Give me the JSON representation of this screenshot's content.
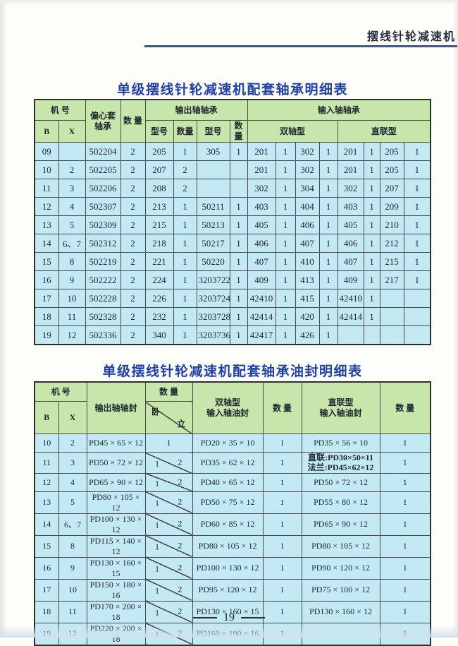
{
  "page": {
    "running_title": "摆线针轮减速机"
  },
  "table1": {
    "title": "单级摆线针轮减速机配套轴承明细表",
    "headers": {
      "machine_no": "机  号",
      "b": "B",
      "x": "X",
      "eccentric_bearing": "偏心套\n轴承",
      "qty": "数  量",
      "output_bearing": "输出轴轴承",
      "input_bearing": "输入轴轴承",
      "model": "型号",
      "qty_small": "数量",
      "dual_shaft": "双轴型",
      "direct_coupled": "直联型"
    },
    "rows": [
      [
        "09",
        "",
        "502204",
        "2",
        "205",
        "1",
        "305",
        "1",
        "201",
        "1",
        "302",
        "1",
        "201",
        "1",
        "205",
        "1"
      ],
      [
        "10",
        "2",
        "502205",
        "2",
        "207",
        "2",
        "",
        "",
        "201",
        "1",
        "302",
        "1",
        "201",
        "1",
        "205",
        "1"
      ],
      [
        "11",
        "3",
        "502206",
        "2",
        "208",
        "2",
        "",
        "",
        "302",
        "1",
        "304",
        "1",
        "302",
        "1",
        "207",
        "1"
      ],
      [
        "12",
        "4",
        "502307",
        "2",
        "213",
        "1",
        "50211",
        "1",
        "403",
        "1",
        "404",
        "1",
        "403",
        "1",
        "209",
        "1"
      ],
      [
        "13",
        "5",
        "502309",
        "2",
        "215",
        "1",
        "50213",
        "1",
        "405",
        "1",
        "406",
        "1",
        "405",
        "1",
        "210",
        "1"
      ],
      [
        "14",
        "6、7",
        "502312",
        "2",
        "218",
        "1",
        "50217",
        "1",
        "406",
        "1",
        "407",
        "1",
        "406",
        "1",
        "212",
        "1"
      ],
      [
        "15",
        "8",
        "502219",
        "2",
        "221",
        "1",
        "50220",
        "1",
        "407",
        "1",
        "410",
        "1",
        "407",
        "1",
        "215",
        "1"
      ],
      [
        "16",
        "9",
        "502222",
        "2",
        "224",
        "1",
        "3203722",
        "1",
        "409",
        "1",
        "413",
        "1",
        "409",
        "1",
        "217",
        "1"
      ],
      [
        "17",
        "10",
        "502228",
        "2",
        "226",
        "1",
        "3203724",
        "1",
        "42410",
        "1",
        "415",
        "1",
        "42410",
        "1",
        "",
        ""
      ],
      [
        "18",
        "11",
        "502328",
        "2",
        "232",
        "1",
        "3203728",
        "1",
        "42414",
        "1",
        "420",
        "1",
        "42414",
        "1",
        "",
        ""
      ],
      [
        "19",
        "12",
        "502336",
        "2",
        "340",
        "1",
        "3203736",
        "1",
        "42417",
        "1",
        "426",
        "1",
        "",
        "",
        "",
        ""
      ]
    ]
  },
  "table2": {
    "title": "单级摆线针轮减速机配套轴承油封明细表",
    "headers": {
      "machine_no": "机  号",
      "b": "B",
      "x": "X",
      "output_seal": "输出轴轴封",
      "qty": "数  量",
      "lie": "卧",
      "stand": "立",
      "dual_seal": "双轴型\n输入轴油封",
      "direct_seal": "直联型\n输入轴油封"
    },
    "rows": [
      {
        "b": "10",
        "x": "2",
        "output_seal": "PD45 × 65 × 12",
        "qty_split": false,
        "qty_lie": "1",
        "qty_stand": "",
        "dual_seal": "PD20 × 35 × 10",
        "dual_qty": "1",
        "direct_seal": [
          "PD35 × 56 × 10"
        ],
        "direct_qty": "1"
      },
      {
        "b": "11",
        "x": "3",
        "output_seal": "PD50 × 72 × 12",
        "qty_split": true,
        "qty_lie": "1",
        "qty_stand": "2",
        "dual_seal": "PD35 × 62 × 12",
        "dual_qty": "1",
        "direct_seal": [
          "直联:PD30×50×11",
          "法兰:PD45×62×12"
        ],
        "direct_qty": "1"
      },
      {
        "b": "12",
        "x": "4",
        "output_seal": "PD65 × 90 × 12",
        "qty_split": true,
        "qty_lie": "1",
        "qty_stand": "2",
        "dual_seal": "PD40 × 65 × 12",
        "dual_qty": "1",
        "direct_seal": [
          "PD50 × 72 × 12"
        ],
        "direct_qty": "1"
      },
      {
        "b": "13",
        "x": "5",
        "output_seal": "PD80 × 105 × 12",
        "qty_split": true,
        "qty_lie": "1",
        "qty_stand": "2",
        "dual_seal": "PD50 × 75 × 12",
        "dual_qty": "1",
        "direct_seal": [
          "PD55 × 80 × 12"
        ],
        "direct_qty": "1"
      },
      {
        "b": "14",
        "x": "6、7",
        "output_seal": "PD100 × 130 × 12",
        "qty_split": true,
        "qty_lie": "1",
        "qty_stand": "2",
        "dual_seal": "PD60 × 85 × 12",
        "dual_qty": "1",
        "direct_seal": [
          "PD65 × 90 × 12"
        ],
        "direct_qty": "1"
      },
      {
        "b": "15",
        "x": "8",
        "output_seal": "PD115 × 140 × 12",
        "qty_split": true,
        "qty_lie": "1",
        "qty_stand": "2",
        "dual_seal": "PD80 × 105 × 12",
        "dual_qty": "1",
        "direct_seal": [
          "PD80 × 105 × 12"
        ],
        "direct_qty": "1"
      },
      {
        "b": "16",
        "x": "9",
        "output_seal": "PD130 × 160 × 15",
        "qty_split": true,
        "qty_lie": "1",
        "qty_stand": "2",
        "dual_seal": "PD100 × 130 × 12",
        "dual_qty": "1",
        "direct_seal": [
          "PD90 × 120 × 12"
        ],
        "direct_qty": "1"
      },
      {
        "b": "17",
        "x": "10",
        "output_seal": "PD150 × 180 × 16",
        "qty_split": true,
        "qty_lie": "1",
        "qty_stand": "2",
        "dual_seal": "PD95 × 120 × 12",
        "dual_qty": "1",
        "direct_seal": [
          "PD75 × 100 × 12"
        ],
        "direct_qty": "1"
      },
      {
        "b": "18",
        "x": "11",
        "output_seal": "PD170 × 200 × 18",
        "qty_split": true,
        "qty_lie": "1",
        "qty_stand": "2",
        "dual_seal": "PD130 × 160 × 15",
        "dual_qty": "1",
        "direct_seal": [
          "PD130 × 160 × 12"
        ],
        "direct_qty": "1"
      },
      {
        "b": "19",
        "x": "12",
        "output_seal": "PD220 × 200 × 18",
        "qty_split": true,
        "qty_lie": "1",
        "qty_stand": "2",
        "dual_seal": "PD160 × 190 × 16",
        "dual_qty": "1",
        "direct_seal": [],
        "direct_qty": "1"
      }
    ]
  },
  "footer": {
    "page_number": "19"
  }
}
